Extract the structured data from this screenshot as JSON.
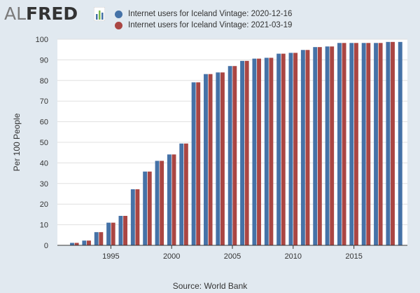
{
  "logo": {
    "part1": "AL",
    "part2": "FRED"
  },
  "colors": {
    "series1": "#4572a7",
    "series2": "#aa4643",
    "background": "#e1e9f0",
    "plot_background": "#ffffff",
    "grid": "#e0e0e0",
    "axis": "#333333"
  },
  "chart_data": {
    "type": "bar",
    "ylabel": "Per 100 People",
    "source": "Source: World Bank",
    "ylim": [
      0,
      100
    ],
    "y_ticks": [
      0,
      10,
      20,
      30,
      40,
      50,
      60,
      70,
      80,
      90,
      100
    ],
    "x_ticks": [
      1995,
      2000,
      2005,
      2010,
      2015
    ],
    "grid": true,
    "legend_position": "top",
    "categories": [
      1992,
      1993,
      1994,
      1995,
      1996,
      1997,
      1998,
      1999,
      2000,
      2001,
      2002,
      2003,
      2004,
      2005,
      2006,
      2007,
      2008,
      2009,
      2010,
      2011,
      2012,
      2013,
      2014,
      2015,
      2016,
      2017,
      2018,
      2019
    ],
    "series": [
      {
        "name": "Internet users for Iceland Vintage: 2020-12-16",
        "values": [
          1.2,
          2.3,
          6.4,
          11.0,
          14.3,
          27.2,
          35.8,
          41.0,
          44.1,
          49.4,
          79.1,
          83.1,
          83.9,
          87.0,
          89.5,
          90.6,
          91.0,
          93.0,
          93.4,
          94.8,
          96.2,
          96.5,
          98.2,
          98.2,
          98.2,
          98.2,
          98.7,
          98.7
        ]
      },
      {
        "name": "Internet users for Iceland Vintage: 2021-03-19",
        "values": [
          1.2,
          2.3,
          6.4,
          11.0,
          14.3,
          27.2,
          35.8,
          41.0,
          44.1,
          49.4,
          79.1,
          83.1,
          83.9,
          87.0,
          89.5,
          90.6,
          91.0,
          93.0,
          93.4,
          94.8,
          96.2,
          96.5,
          98.2,
          98.2,
          98.2,
          98.2,
          98.7,
          null
        ]
      }
    ]
  }
}
